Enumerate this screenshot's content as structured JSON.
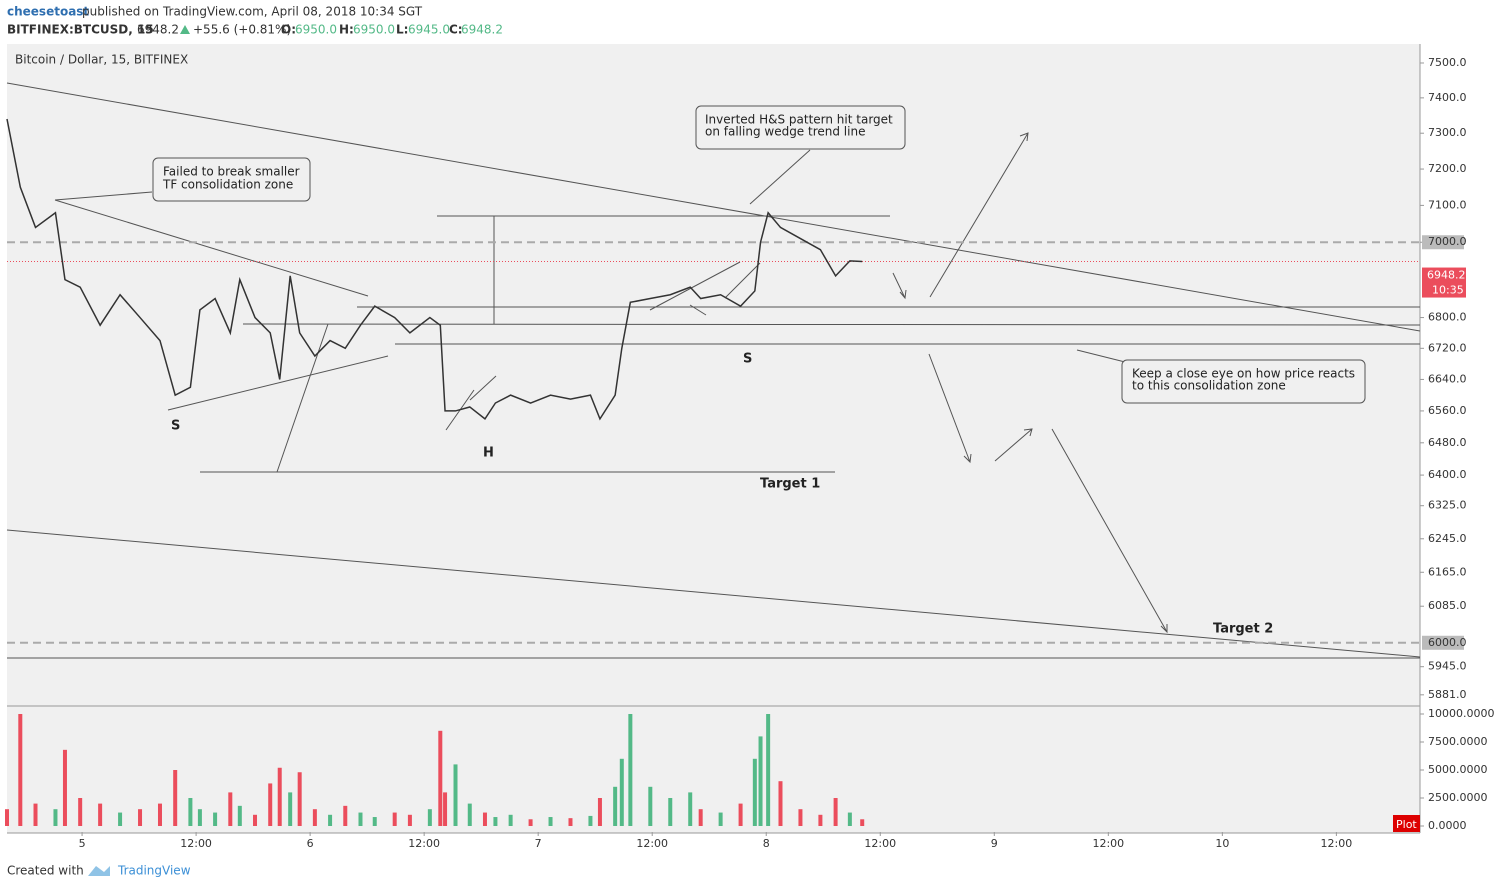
{
  "header": {
    "author": "cheesetoast",
    "published": "published on TradingView.com, April 08, 2018 10:34 SGT",
    "symbol": "BITFINEX:BTCUSD, 15",
    "price": "6948.2",
    "change": "+55.6 (+0.81%)",
    "o_label": "O:",
    "o": "6950.0",
    "h_label": "H:",
    "h": "6950.0",
    "l_label": "L:",
    "l": "6945.0",
    "c_label": "C:",
    "c": "6948.2"
  },
  "footer": {
    "created": "Created with",
    "brand": "TradingView"
  },
  "chart_data": {
    "type": "line",
    "title": "Bitcoin / Dollar, 15, BITFINEX",
    "log_scale": true,
    "x": [
      -7.9,
      -6.5,
      -4.9,
      -2.8,
      -1.8,
      -0.2,
      1.9,
      4.0,
      6.1,
      8.2,
      9.8,
      11.4,
      12.4,
      14.0,
      15.6,
      16.6,
      18.2,
      19.8,
      20.8,
      21.9,
      22.9,
      24.5,
      26.1,
      27.7,
      29.3,
      30.8,
      32.9,
      34.5,
      36.6,
      37.7,
      38.2,
      39.3,
      40.8,
      42.4,
      43.5,
      45.1,
      47.2,
      49.3,
      51.4,
      53.5,
      54.5,
      56.1,
      56.8,
      57.7,
      59.8,
      61.9,
      64.0,
      65.1,
      67.2,
      69.3,
      70.8,
      71.4,
      72.2,
      73.5,
      75.6,
      77.7,
      79.3,
      80.8,
      82.1
    ],
    "series": [
      {
        "name": "Price",
        "color": "#333333",
        "values": [
          7340,
          7150,
          7040,
          7080,
          6900,
          6880,
          6780,
          6860,
          6800,
          6740,
          6600,
          6620,
          6820,
          6850,
          6760,
          6900,
          6800,
          6760,
          6640,
          6910,
          6760,
          6700,
          6740,
          6720,
          6780,
          6830,
          6800,
          6760,
          6800,
          6780,
          6560,
          6560,
          6570,
          6540,
          6580,
          6600,
          6580,
          6600,
          6590,
          6600,
          6540,
          6600,
          6720,
          6840,
          6850,
          6860,
          6880,
          6850,
          6860,
          6830,
          6870,
          7000,
          7080,
          7040,
          7010,
          6980,
          6910,
          6950,
          6948.2
        ]
      },
      {
        "name": "Volume",
        "axis": "y2",
        "up_color": "#53b987",
        "down_color": "#eb4d5c",
        "values": [
          1500,
          10000,
          2000,
          1500,
          6800,
          2500,
          2000,
          1200,
          1500,
          2000,
          5000,
          2500,
          1500,
          1200,
          3000,
          1800,
          1000,
          3800,
          5200,
          3000,
          4800,
          1500,
          1000,
          1800,
          1200,
          800,
          1200,
          1000,
          1500,
          8500,
          3000,
          5500,
          2000,
          1200,
          800,
          1000,
          600,
          800,
          700,
          900,
          2500,
          3500,
          6000,
          10000,
          3500,
          2500,
          3000,
          1500,
          1200,
          2000,
          6000,
          8000,
          10000,
          4000,
          1500,
          1000,
          2500,
          1200,
          600
        ]
      }
    ],
    "xlim": [
      -7.9,
      140.8
    ],
    "xticks": [
      {
        "value": 0,
        "label": "5"
      },
      {
        "value": 12,
        "label": "12:00"
      },
      {
        "value": 24,
        "label": "6"
      },
      {
        "value": 36,
        "label": "12:00"
      },
      {
        "value": 48,
        "label": "7"
      },
      {
        "value": 60,
        "label": "12:00"
      },
      {
        "value": 72,
        "label": "8"
      },
      {
        "value": 84,
        "label": "12:00"
      },
      {
        "value": 96,
        "label": "9"
      },
      {
        "value": 108,
        "label": "12:00"
      },
      {
        "value": 120,
        "label": "10"
      },
      {
        "value": 132,
        "label": "12:00"
      }
    ],
    "ylim": [
      5858,
      7555
    ],
    "yticks": [
      {
        "value": 7500,
        "label": "7500.0"
      },
      {
        "value": 7400,
        "label": "7400.0"
      },
      {
        "value": 7300,
        "label": "7300.0"
      },
      {
        "value": 7200,
        "label": "7200.0"
      },
      {
        "value": 7100,
        "label": "7100.0"
      },
      {
        "value": 7000,
        "label": "7000.0"
      },
      {
        "value": 6800,
        "label": "6800.0"
      },
      {
        "value": 6720,
        "label": "6720.0"
      },
      {
        "value": 6640,
        "label": "6640.0"
      },
      {
        "value": 6560,
        "label": "6560.0"
      },
      {
        "value": 6480,
        "label": "6480.0"
      },
      {
        "value": 6400,
        "label": "6400.0"
      },
      {
        "value": 6325,
        "label": "6325.0"
      },
      {
        "value": 6245,
        "label": "6245.0"
      },
      {
        "value": 6165,
        "label": "6165.0"
      },
      {
        "value": 6085,
        "label": "6085.0"
      },
      {
        "value": 5945,
        "label": "5945.0"
      },
      {
        "value": 5881,
        "label": "5881.0"
      }
    ],
    "y2lim": [
      -536,
      10625
    ],
    "y2ticks": [
      {
        "value": 10000,
        "label": "10000.0000"
      },
      {
        "value": 7500,
        "label": "7500.0000"
      },
      {
        "value": 5000,
        "label": "5000.0000"
      },
      {
        "value": 2500,
        "label": "2500.0000"
      },
      {
        "value": 0,
        "label": "0.0000"
      }
    ],
    "levels": [
      {
        "value": 7000,
        "label": "7000.0"
      },
      {
        "value": 6000,
        "label": "6000.0"
      }
    ],
    "last_price": {
      "value": 6948.2,
      "label": "6948.2",
      "color": "#eb4d5c"
    },
    "countdown": "10:35",
    "plot_label": "Plot",
    "annotations": {
      "failed": [
        "Failed to break smaller",
        "TF consolidation zone"
      ],
      "inverted": [
        "Inverted H&S pattern hit target",
        "on falling wedge trend line"
      ],
      "keep": [
        "Keep a close eye on how price reacts",
        "to this consolidation zone"
      ]
    },
    "pattern_labels": [
      "S",
      "H",
      "S",
      "Target 1",
      "Target 2"
    ]
  }
}
